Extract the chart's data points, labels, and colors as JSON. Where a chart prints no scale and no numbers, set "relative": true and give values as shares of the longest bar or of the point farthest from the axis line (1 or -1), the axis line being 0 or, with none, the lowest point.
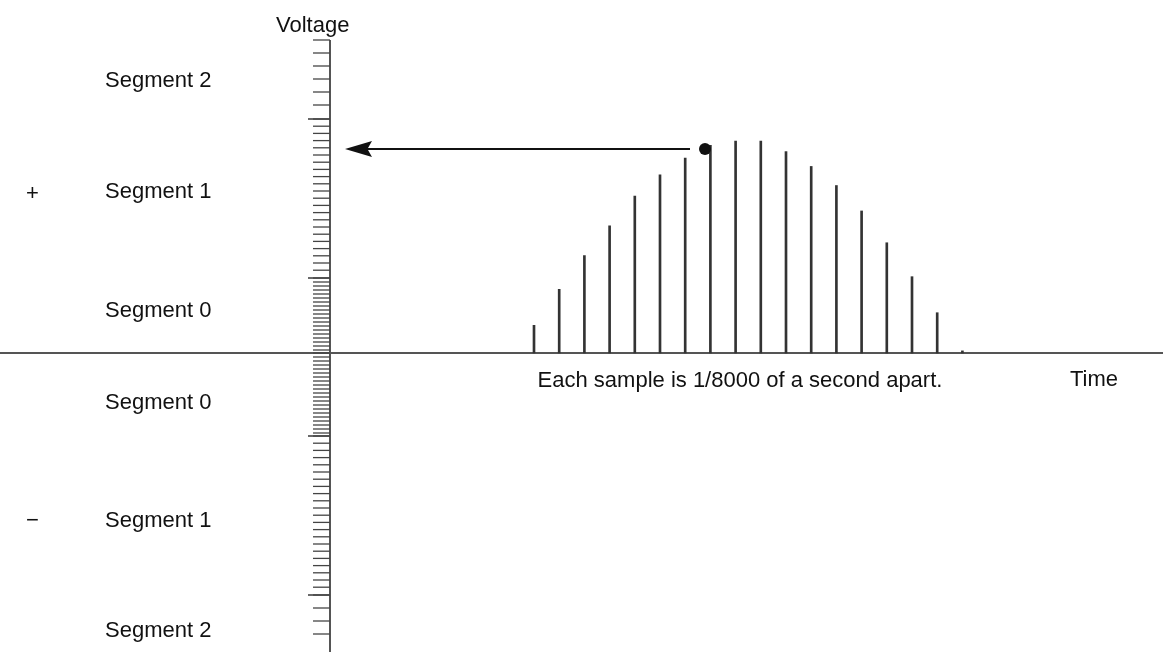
{
  "chart_data": {
    "type": "bar",
    "relative": true,
    "xlabel": "Time",
    "categories": [
      null,
      null,
      null,
      null,
      null,
      null,
      null,
      null,
      null,
      null,
      null,
      null,
      null,
      null,
      null,
      null,
      null,
      null
    ],
    "values": [
      0.13,
      0.3,
      0.46,
      0.6,
      0.74,
      0.84,
      0.92,
      0.98,
      1,
      1,
      0.95,
      0.88,
      0.79,
      0.67,
      0.52,
      0.36,
      0.19,
      0.01
    ],
    "color": "#333333",
    "annotations": [
      "Each sample is 1/8000 of a second apart.",
      "Segment 2",
      "Segment 1",
      "Segment 0",
      "Segment 0",
      "Segment 1",
      "Segment 2",
      "+",
      "−",
      "Voltage"
    ]
  }
}
